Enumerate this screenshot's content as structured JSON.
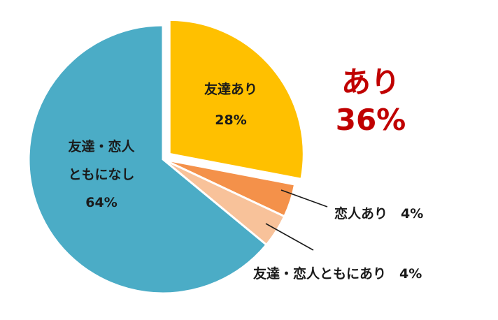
{
  "summary": {
    "line1": "あり",
    "line2": "36%",
    "color": "#c00000"
  },
  "chart_data": {
    "type": "pie",
    "title": "",
    "start_angle_deg": 0,
    "direction": "clockwise",
    "slices": [
      {
        "label": "友達あり",
        "label_lines": [
          "友達あり"
        ],
        "pct_text": "28%",
        "value": 28,
        "color": "#ffc000",
        "exploded": true,
        "label_pos": "inside"
      },
      {
        "label": "恋人あり",
        "label_lines": [
          "恋人あり　4%"
        ],
        "pct_text": "",
        "value": 4,
        "color": "#f4914a",
        "exploded": false,
        "label_pos": "outside"
      },
      {
        "label": "友達・恋人ともにあり",
        "label_lines": [
          "友達・恋人ともにあり　4%"
        ],
        "pct_text": "",
        "value": 4,
        "color": "#f8c29a",
        "exploded": false,
        "label_pos": "outside"
      },
      {
        "label": "友達・恋人ともになし",
        "label_lines": [
          "友達・恋人",
          "ともになし"
        ],
        "pct_text": "64%",
        "value": 64,
        "color": "#4bacc6",
        "exploded": false,
        "label_pos": "inside"
      }
    ]
  }
}
